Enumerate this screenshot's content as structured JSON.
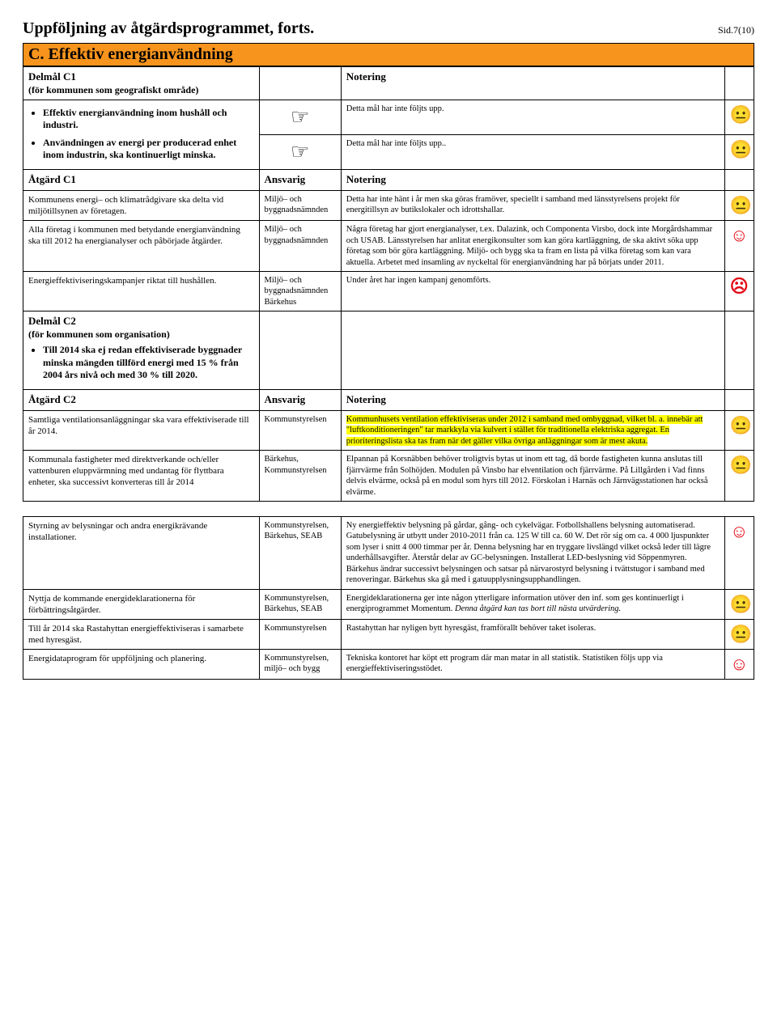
{
  "page": {
    "title": "Uppföljning av åtgärdsprogrammet, forts.",
    "sid": "Sid.7(10)"
  },
  "sectionC": {
    "banner": "C. Effektiv energianvändning",
    "delmalC1": {
      "heading": "Delmål C1",
      "sub": "(för kommunen som geografiskt område)",
      "noteringHdr": "Notering",
      "bullets": [
        "Effektiv energianvändning inom hushåll och industri.",
        "Användningen av energi per producerad enhet inom industrin, ska kontinuerligt minska."
      ],
      "noteTexts": [
        "Detta mål har inte följts upp.",
        "Detta mål har inte följts upp.."
      ]
    },
    "atgardC1": {
      "c1": "Åtgärd C1",
      "c2": "Ansvarig",
      "c3": "Notering",
      "rows": [
        {
          "a": "Kommunens energi– och klimatrådgivare ska delta vid miljötillsynen av företagen.",
          "b": "Miljö– och byggnadsnämnden",
          "c": "Detta har inte hänt i år men ska göras framöver, speciellt i samband med länsstyrelsens projekt för energitillsyn av butikslokaler och idrottshallar.",
          "face": "😐"
        },
        {
          "a": "Alla företag i kommunen med betydande energianvändning ska till 2012 ha energianalyser och påbörjade åtgärder.",
          "b": "Miljö– och byggnadsnämnden",
          "c": "Några företag har gjort energianalyser, t.ex. Dalazink, och Componenta Virsbo, dock inte Morgårdshammar och USAB. Länsstyrelsen har anlitat energikonsulter som kan göra kartläggning, de ska aktivt söka upp företag som bör göra kartläggning. Miljö- och bygg ska ta fram en lista på vilka företag som kan vara aktuella. Arbetet med insamling av nyckeltal för energianvändning har på börjats under 2011.",
          "face": "☺"
        },
        {
          "a": "Energieffektiviseringskampanjer riktat till hushållen.",
          "b": "Miljö– och byggnadsnämnden Bärkehus",
          "c": "Under året har ingen kampanj genomförts.",
          "face": "☹"
        }
      ]
    },
    "delmalC2": {
      "heading": "Delmål C2",
      "sub": "(för kommunen som organisation)",
      "bullet": "Till 2014 ska ej redan effektiviserade byggnader minska mängden tillförd energi med 15 % från 2004 års nivå och med 30 % till 2020."
    },
    "atgardC2": {
      "c1": "Åtgärd C2",
      "c2": "Ansvarig",
      "c3": "Notering",
      "rows": [
        {
          "a": "Samtliga ventilationsanläggningar ska vara effektiviserade till år 2014.",
          "b": "Kommunstyrelsen",
          "c_hl": "Kommunhusets ventilation effektiviseras under 2012 i samband med ombyggnad, vilket bl. a. innebär att \"luftkonditioneringen\" tar markkyla via kulvert i stället för traditionella elektriska aggregat. En prioriteringslista ska tas fram när det gäller vilka övriga anläggningar som är mest akuta.",
          "face": "😐"
        },
        {
          "a": "Kommunala fastigheter med direktverkande och/eller vattenburen eluppvärmning med undantag för flyttbara enheter, ska successivt konverteras till år 2014",
          "b": "Bärkehus, Kommunstyrelsen",
          "c": "Elpannan på Korsnäbben behöver troligtvis bytas ut inom ett tag, då borde fastigheten kunna anslutas till fjärrvärme från Solhöjden. Modulen på Vinsbo har elventilation och fjärrvärme. På Lillgården i Vad finns delvis elvärme, också på en modul som hyrs till 2012. Förskolan i Harnäs och Järnvägsstationen har också elvärme.",
          "face": "😐"
        }
      ]
    },
    "atgardC2b": {
      "rows": [
        {
          "a": "Styrning av belysningar och andra energikrävande installationer.",
          "b": "Kommunstyrelsen, Bärkehus, SEAB",
          "c": "Ny energieffektiv belysning på gårdar, gång- och cykelvägar. Fotbollshallens belysning automatiserad. Gatubelysning är utbytt under 2010-2011 från ca. 125 W till ca. 60 W. Det rör sig om ca. 4 000 ljuspunkter som lyser i snitt 4 000 timmar per år. Denna belysning har en tryggare livslängd vilket också leder till lägre underhållsavgifter. Återstår delar av GC-belysningen. Installerat LED-beslysning vid Söppenmyren. Bärkehus ändrar successivt belysningen och satsar på närvarostyrd belysning i tvättstugor i samband med renoveringar. Bärkehus ska gå med i gatuupplysningsupphandlingen.",
          "face": "☺"
        },
        {
          "a": "Nyttja de kommande energideklarationerna för förbättringsåtgärder.",
          "b": "Kommunstyrelsen, Bärkehus, SEAB",
          "c_pre": "Energideklarationerna ger inte någon ytterligare information utöver den inf. som ges kontinuerligt i energiprogrammet Momentum. ",
          "c_it": "Denna åtgärd kan tas bort till nästa utvärdering.",
          "face": "😐"
        },
        {
          "a": "Till år 2014 ska Rastahyttan energieffektiviseras i samarbete med hyresgäst.",
          "b": "Kommunstyrelsen",
          "c": "Rastahyttan har nyligen bytt hyresgäst, framförallt behöver taket isoleras.",
          "face": "😐"
        },
        {
          "a": "Energidataprogram för uppföljning och planering.",
          "b": "Kommunstyrelsen, miljö– och bygg",
          "c": "Tekniska kontoret har köpt ett program där man matar in all statistik. Statistiken följs upp via energieffektiviseringsstödet.",
          "face": "☺"
        }
      ]
    }
  }
}
